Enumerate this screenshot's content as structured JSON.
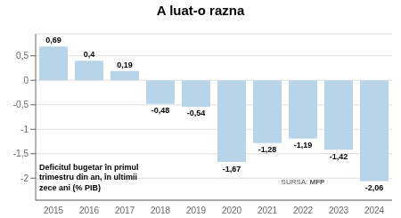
{
  "chart_data": {
    "type": "bar",
    "title": "A luat-o razna",
    "subtitle": "Deficitul bugetar în primul\ntrimestru din an, în ultimii\nzece ani (% PIB)",
    "annotation": "SURSA: MFP",
    "categories": [
      "2015",
      "2016",
      "2017",
      "2018",
      "2019",
      "2020",
      "2021",
      "2022",
      "2023",
      "2024"
    ],
    "values": [
      0.69,
      0.4,
      0.19,
      -0.48,
      -0.54,
      -1.67,
      -1.28,
      -1.19,
      -1.42,
      -2.06
    ],
    "value_labels": [
      "0,69",
      "0,4",
      "0,19",
      "-0,48",
      "-0,54",
      "-1,67",
      "-1,28",
      "-1,19",
      "-1,42",
      "-2,06"
    ],
    "data_labels": true,
    "color": "#b8d4e8",
    "ylim": [
      -2.45,
      0.95
    ],
    "yticks": [
      {
        "value": 0.5,
        "label": "0,5"
      },
      0,
      {
        "value": -0.5,
        "label": "-0,5"
      },
      -1,
      {
        "value": -1.5,
        "label": "-1,5"
      },
      -2
    ],
    "grid": true
  }
}
